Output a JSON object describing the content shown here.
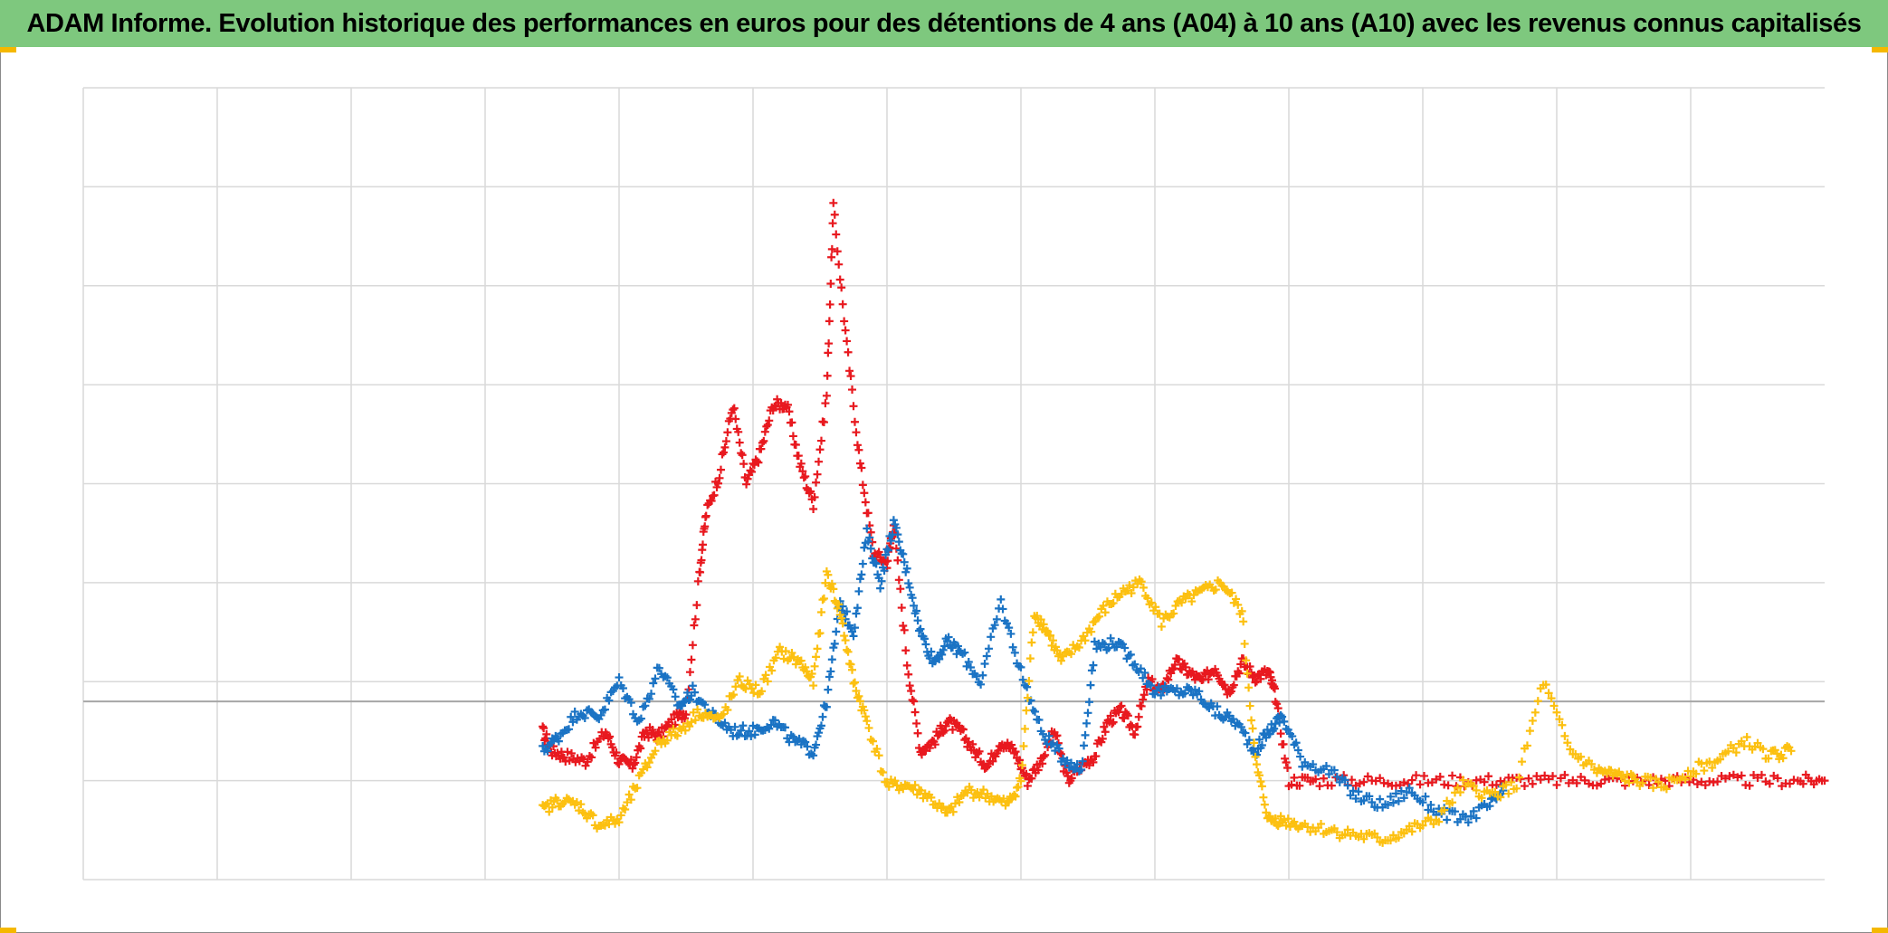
{
  "title": "ADAM Informe. Evolution historique des performances en euros pour des détentions de 4 ans (A04) à 10 ans (A10) avec les revenus connus capitalisés",
  "colors": {
    "title_bar": "#7ec87e",
    "corner_accent": "#f5b800",
    "grid": "#d9d9d9",
    "zero_line": "#a6a6a6",
    "frame": "#8a8a8a"
  },
  "chart_data": {
    "type": "scatter",
    "marker": "plus",
    "grid": true,
    "legend": "none",
    "xlim": [
      0,
      13
    ],
    "ylim": [
      -1.8,
      6.2
    ],
    "x_gridlines": [
      0,
      1,
      2,
      3,
      4,
      5,
      6,
      7,
      8,
      9,
      10,
      11,
      12
    ],
    "y_gridlines": [
      -1.8,
      -0.8,
      0.2,
      1.2,
      2.2,
      3.2,
      4.2,
      5.2,
      6.2
    ],
    "baseline_y": 0,
    "series": [
      {
        "color": "#e8191f",
        "x": [
          3.43,
          3.5,
          3.6,
          3.75,
          3.9,
          4.0,
          4.1,
          4.2,
          4.3,
          4.4,
          4.5,
          4.6,
          4.65,
          4.75,
          4.85,
          4.95,
          5.05,
          5.15,
          5.25,
          5.35,
          5.45,
          5.55,
          5.6,
          5.7,
          5.8,
          5.9,
          6.0,
          6.05,
          6.15,
          6.25,
          6.35,
          6.45,
          6.55,
          6.65,
          6.75,
          6.85,
          6.95,
          7.05,
          7.15,
          7.25,
          7.35,
          7.45,
          7.55,
          7.65,
          7.75,
          7.85,
          7.95,
          8.05,
          8.15,
          8.25,
          8.35,
          8.45,
          8.55,
          8.65,
          8.75,
          8.85,
          8.9,
          9.0,
          9.2,
          9.5,
          9.8,
          10.1,
          10.4,
          10.7,
          11.0,
          11.3,
          11.6,
          11.9,
          12.2,
          12.5,
          12.8,
          13.0
        ],
        "y": [
          -0.3,
          -0.5,
          -0.55,
          -0.6,
          -0.3,
          -0.6,
          -0.65,
          -0.3,
          -0.35,
          -0.2,
          -0.1,
          1.3,
          1.9,
          2.3,
          3.0,
          2.2,
          2.5,
          3.0,
          3.0,
          2.4,
          2.0,
          3.1,
          5.0,
          3.6,
          2.4,
          1.5,
          1.4,
          1.8,
          0.4,
          -0.5,
          -0.4,
          -0.2,
          -0.3,
          -0.5,
          -0.65,
          -0.4,
          -0.5,
          -0.8,
          -0.6,
          -0.3,
          -0.8,
          -0.65,
          -0.55,
          -0.2,
          -0.1,
          -0.3,
          0.2,
          0.1,
          0.4,
          0.3,
          0.2,
          0.35,
          0.1,
          0.4,
          0.25,
          0.3,
          0.05,
          -0.8,
          -0.8,
          -0.8,
          -0.8,
          -0.8,
          -0.8,
          -0.8,
          -0.8,
          -0.8,
          -0.8,
          -0.8,
          -0.8,
          -0.8,
          -0.8,
          -0.8
        ]
      },
      {
        "color": "#1a73c4",
        "x": [
          3.43,
          3.55,
          3.7,
          3.85,
          4.0,
          4.15,
          4.3,
          4.45,
          4.55,
          4.7,
          4.85,
          5.0,
          5.15,
          5.3,
          5.45,
          5.55,
          5.65,
          5.75,
          5.85,
          5.95,
          6.05,
          6.15,
          6.25,
          6.35,
          6.45,
          6.55,
          6.7,
          6.85,
          7.0,
          7.15,
          7.3,
          7.45,
          7.55,
          7.7,
          7.85,
          8.0,
          8.15,
          8.3,
          8.45,
          8.6,
          8.75,
          8.85,
          8.95,
          9.1,
          9.3,
          9.5,
          9.7,
          9.9,
          10.1,
          10.3,
          10.5,
          10.6
        ],
        "y": [
          -0.5,
          -0.35,
          -0.1,
          -0.15,
          0.2,
          -0.2,
          0.35,
          -0.05,
          0.1,
          -0.15,
          -0.3,
          -0.3,
          -0.2,
          -0.4,
          -0.5,
          0.0,
          1.0,
          0.7,
          1.7,
          1.2,
          1.8,
          1.3,
          0.7,
          0.4,
          0.6,
          0.5,
          0.2,
          1.0,
          0.3,
          -0.3,
          -0.55,
          -0.7,
          0.55,
          0.6,
          0.4,
          0.1,
          0.1,
          0.1,
          -0.1,
          -0.2,
          -0.5,
          -0.3,
          -0.15,
          -0.6,
          -0.7,
          -0.95,
          -1.05,
          -0.9,
          -1.1,
          -1.2,
          -1.05,
          -0.9
        ]
      },
      {
        "color": "#fcc010",
        "x": [
          3.43,
          3.55,
          3.7,
          3.85,
          4.0,
          4.15,
          4.3,
          4.45,
          4.6,
          4.75,
          4.9,
          5.05,
          5.2,
          5.35,
          5.45,
          5.55,
          5.65,
          5.75,
          5.85,
          6.0,
          6.15,
          6.3,
          6.45,
          6.6,
          6.75,
          6.9,
          7.0,
          7.1,
          7.2,
          7.3,
          7.45,
          7.6,
          7.75,
          7.9,
          8.05,
          8.2,
          8.35,
          8.5,
          8.65,
          8.75,
          8.85,
          8.95,
          9.1,
          9.3,
          9.5,
          9.7,
          9.9,
          10.1,
          10.3,
          10.5,
          10.7,
          10.9,
          11.1,
          11.3,
          11.45,
          11.6,
          11.8,
          12.0,
          12.2,
          12.4,
          12.6,
          12.75
        ],
        "y": [
          -1.1,
          -1.0,
          -1.05,
          -1.25,
          -1.2,
          -0.8,
          -0.4,
          -0.3,
          -0.1,
          -0.2,
          0.2,
          0.1,
          0.5,
          0.4,
          0.2,
          1.3,
          0.9,
          0.2,
          -0.2,
          -0.85,
          -0.85,
          -0.95,
          -1.15,
          -0.9,
          -0.95,
          -1.05,
          -0.8,
          0.9,
          0.7,
          0.4,
          0.6,
          0.9,
          1.1,
          1.2,
          0.8,
          1.0,
          1.1,
          1.2,
          0.9,
          -0.6,
          -1.2,
          -1.2,
          -1.25,
          -1.3,
          -1.35,
          -1.4,
          -1.3,
          -1.2,
          -0.85,
          -0.95,
          -0.85,
          0.2,
          -0.5,
          -0.7,
          -0.75,
          -0.8,
          -0.85,
          -0.7,
          -0.6,
          -0.4,
          -0.55,
          -0.5
        ]
      }
    ]
  }
}
